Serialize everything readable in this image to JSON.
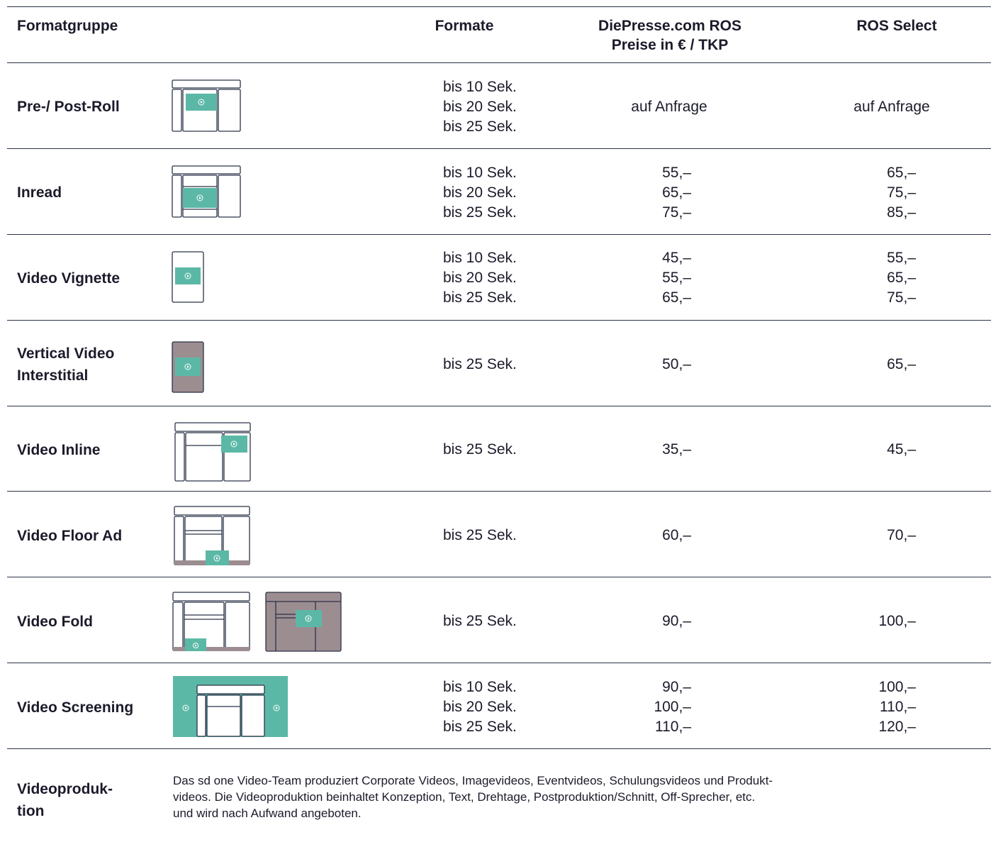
{
  "header": {
    "col_group": "Formatgruppe",
    "col_formats": "Formate",
    "col_price1_line1": "DiePresse.com ROS",
    "col_price1_line2": "Preise in € / TKP",
    "col_price2": "ROS Select"
  },
  "colors": {
    "accent": "#5cb8a6",
    "muted": "#9c8d91",
    "line": "#2b3348"
  },
  "rows": [
    {
      "name": "Pre-/ Post-Roll",
      "icon": "pre-post-roll-layout-icon",
      "formats": [
        "bis 10 Sek.",
        "bis 20 Sek.",
        "bis 25 Sek."
      ],
      "price_ros": "auf Anfrage",
      "price_select": "auf Anfrage"
    },
    {
      "name": "Inread",
      "icon": "inread-layout-icon",
      "formats": [
        "bis 10 Sek.",
        "bis 20 Sek.",
        "bis 25 Sek."
      ],
      "price_ros": [
        "55,–",
        "65,–",
        "75,–"
      ],
      "price_select": [
        "65,–",
        "75,–",
        "85,–"
      ]
    },
    {
      "name": "Video Vignette",
      "icon": "video-vignette-layout-icon",
      "formats": [
        "bis 10 Sek.",
        "bis 20 Sek.",
        "bis 25 Sek."
      ],
      "price_ros": [
        "45,–",
        "55,–",
        "65,–"
      ],
      "price_select": [
        "55,–",
        "65,–",
        "75,–"
      ]
    },
    {
      "name_line1": "Vertical Video",
      "name_line2": "Interstitial",
      "icon": "vertical-video-interstitial-layout-icon",
      "formats": [
        "bis 25 Sek."
      ],
      "price_ros": [
        "50,–"
      ],
      "price_select": [
        "65,–"
      ]
    },
    {
      "name": "Video Inline",
      "icon": "video-inline-layout-icon",
      "formats": [
        "bis 25 Sek."
      ],
      "price_ros": [
        "35,–"
      ],
      "price_select": [
        "45,–"
      ]
    },
    {
      "name": "Video Floor Ad",
      "icon": "video-floor-ad-layout-icon",
      "formats": [
        "bis 25 Sek."
      ],
      "price_ros": [
        "60,–"
      ],
      "price_select": [
        "70,–"
      ]
    },
    {
      "name": "Video Fold",
      "icon": "video-fold-layout-icon",
      "formats": [
        "bis 25 Sek."
      ],
      "price_ros": [
        "90,–"
      ],
      "price_select": [
        "100,–"
      ]
    },
    {
      "name": "Video Screening",
      "icon": "video-screening-layout-icon",
      "formats": [
        "bis 10 Sek.",
        "bis 20 Sek.",
        "bis 25 Sek."
      ],
      "price_ros": [
        "90,–",
        "100,–",
        "110,–"
      ],
      "price_select": [
        "100,–",
        "110,–",
        "120,–"
      ]
    }
  ],
  "footer": {
    "title_line1": "Videoproduk-",
    "title_line2": "tion",
    "text_line1": "Das sd one Video-Team produziert Corporate Videos, Imagevideos, Eventvideos, Schulungsvideos und Produkt-",
    "text_line2": "videos. Die Videoproduktion beinhaltet Konzeption, Text, Drehtage, Postproduktion/Schnitt, Off-Sprecher, etc.",
    "text_line3": "und wird nach Aufwand angeboten."
  }
}
